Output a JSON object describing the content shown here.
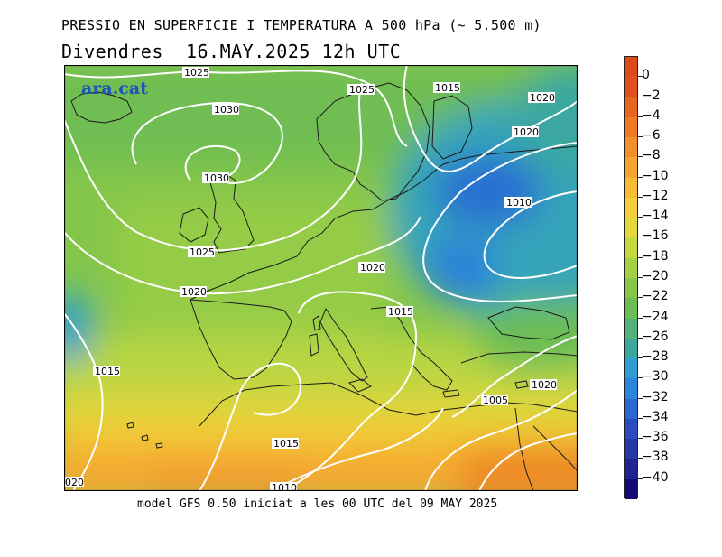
{
  "title_line1": "PRESSIO EN SUPERFICIE I TEMPERATURA A 500 hPa (~ 5.500 m)",
  "title_line2": "Divendres  16.MAY.2025 12h UTC",
  "footer": "model GFS 0.50 iniciat a les 00 UTC del 09 MAY 2025",
  "brand": "ara.cat",
  "colorbar": {
    "labels": [
      "0",
      "−2",
      "−4",
      "−6",
      "−8",
      "−10",
      "−12",
      "−14",
      "−16",
      "−18",
      "−20",
      "−22",
      "−24",
      "−26",
      "−28",
      "−30",
      "−32",
      "−34",
      "−36",
      "−38",
      "−40"
    ],
    "colors": [
      "#e0501e",
      "#e8651e",
      "#ee7a22",
      "#f29029",
      "#f5a52f",
      "#f7bb34",
      "#f4cf37",
      "#e3d93c",
      "#c6d83f",
      "#a5d045",
      "#86c64a",
      "#6cbd55",
      "#52b27a",
      "#3aa7a0",
      "#2f9ed0",
      "#2b85db",
      "#2a68d0",
      "#2a4cbf",
      "#2637a8",
      "#1d2390",
      "#130b73"
    ]
  },
  "isobar_labels": [
    "1025",
    "1025",
    "1015",
    "1020",
    "1030",
    "1020",
    "1030",
    "1010",
    "1025",
    "1020",
    "1020",
    "1015",
    "1015",
    "1005",
    "1020",
    "1015",
    "1010",
    "020"
  ]
}
